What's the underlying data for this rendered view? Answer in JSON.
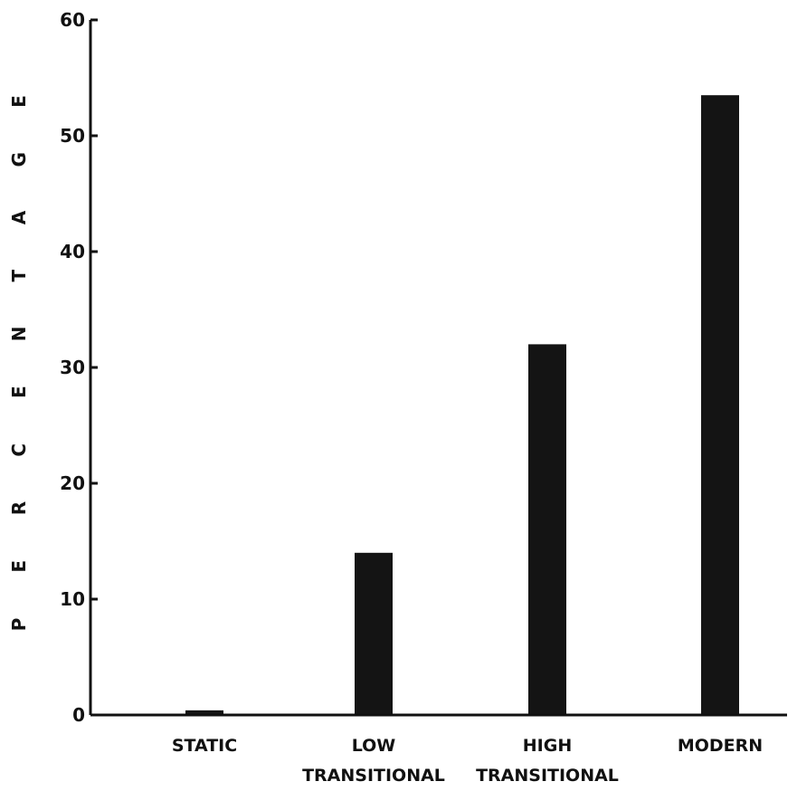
{
  "chart_data": {
    "type": "bar",
    "title": "",
    "xlabel": "",
    "ylabel": "PERCENTAGE",
    "ylim": [
      0,
      60
    ],
    "yticks": [
      "0",
      "10",
      "20",
      "30",
      "40",
      "50",
      "60"
    ],
    "categories": [
      [
        "STATIC"
      ],
      [
        "LOW",
        "TRANSITIONAL"
      ],
      [
        "HIGH",
        "TRANSITIONAL"
      ],
      [
        "MODERN"
      ]
    ],
    "values": [
      0.4,
      14,
      32,
      53.5
    ],
    "grid": false,
    "bar_color": "#141414"
  }
}
